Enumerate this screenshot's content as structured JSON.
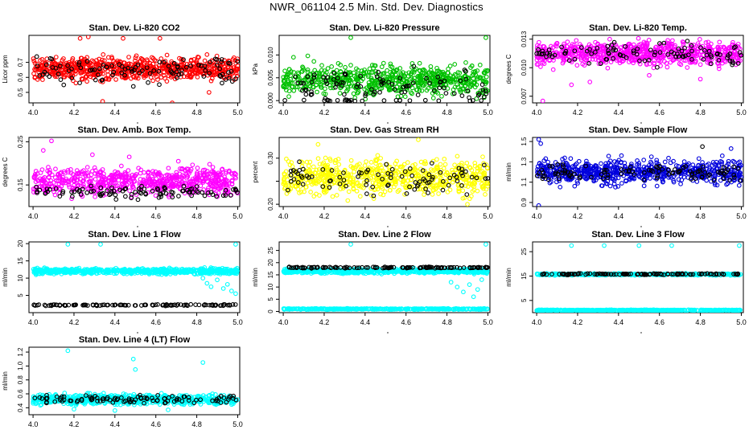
{
  "page_title": "NWR_061104  2.5 Min. Std. Dev. Diagnostics",
  "chart_data": [
    {
      "id": "co2",
      "type": "scatter",
      "title": "Stan. Dev. Li-820 CO2",
      "xlabel": "",
      "ylabel": "Licor ppm",
      "xlim": [
        3.98,
        5.01
      ],
      "ylim": [
        0.43,
        0.88
      ],
      "xticks": [
        4.0,
        4.2,
        4.4,
        4.6,
        4.8,
        5.0
      ],
      "xtick_labels": [
        "4.0",
        "4.2",
        "4.4",
        "4.6",
        "4.8",
        "5.0"
      ],
      "yticks": [
        0.5,
        0.6,
        0.7
      ],
      "ytick_labels": [
        "0.5",
        "0.6",
        "0.7"
      ],
      "colors": {
        "primary": "#ff0000",
        "secondary": "#000000"
      },
      "series": [
        {
          "color": "#ff0000",
          "bands": [
            {
              "center": 0.66,
              "spread": 0.055,
              "n": 700
            }
          ],
          "outliers": [
            [
              4.23,
              0.86
            ],
            [
              4.27,
              0.87
            ],
            [
              4.44,
              0.86
            ],
            [
              4.62,
              0.86
            ],
            [
              4.34,
              0.44
            ],
            [
              4.68,
              0.43
            ],
            [
              4.86,
              0.5
            ]
          ]
        },
        {
          "color": "#000000",
          "bands": [
            {
              "center": 0.65,
              "spread": 0.06,
              "n": 100
            }
          ],
          "outliers": [
            [
              4.15,
              0.55
            ],
            [
              4.49,
              0.54
            ]
          ]
        }
      ]
    },
    {
      "id": "pressure",
      "type": "scatter",
      "title": "Stan. Dev. Li-820 Pressure",
      "xlabel": "",
      "ylabel": "kPa",
      "xlim": [
        3.98,
        5.01
      ],
      "ylim": [
        -0.0005,
        0.0143
      ],
      "xticks": [
        4.0,
        4.2,
        4.4,
        4.6,
        4.8,
        5.0
      ],
      "xtick_labels": [
        "4.0",
        "4.2",
        "4.4",
        "4.6",
        "4.8",
        "5.0"
      ],
      "yticks": [
        0.0,
        0.005,
        0.01
      ],
      "ytick_labels": [
        "0.000",
        "0.005",
        "0.010"
      ],
      "colors": {
        "primary": "#00c000",
        "secondary": "#000000"
      },
      "series": [
        {
          "color": "#00c000",
          "bands": [
            {
              "center": 0.0045,
              "spread": 0.0022,
              "n": 650
            }
          ],
          "outliers": [
            [
              4.33,
              0.0138
            ],
            [
              4.99,
              0.0138
            ],
            [
              4.05,
              0.0095
            ],
            [
              4.12,
              0.0098
            ]
          ]
        },
        {
          "color": "#000000",
          "bands": [
            {
              "center": 0.0035,
              "spread": 0.0025,
              "n": 90
            },
            {
              "center": 0.0,
              "spread": 0.0001,
              "n": 25
            }
          ],
          "outliers": []
        }
      ]
    },
    {
      "id": "licor_temp",
      "type": "scatter",
      "title": "Stan. Dev. Li-820 Temp.",
      "xlabel": "",
      "ylabel": "degrees C",
      "xlim": [
        3.98,
        5.01
      ],
      "ylim": [
        0.0063,
        0.0134
      ],
      "xticks": [
        4.0,
        4.2,
        4.4,
        4.6,
        4.8,
        5.0
      ],
      "xtick_labels": [
        "4.0",
        "4.2",
        "4.4",
        "4.6",
        "4.8",
        "5.0"
      ],
      "yticks": [
        0.007,
        0.01,
        0.013
      ],
      "ytick_labels": [
        "0.007",
        "0.010",
        "0.013"
      ],
      "colors": {
        "primary": "#ff00ff",
        "secondary": "#000000"
      },
      "series": [
        {
          "color": "#ff00ff",
          "bands": [
            {
              "center": 0.0115,
              "spread": 0.0009,
              "n": 700
            }
          ],
          "outliers": [
            [
              4.03,
              0.0065
            ],
            [
              4.17,
              0.0082
            ],
            [
              4.26,
              0.0085
            ],
            [
              4.55,
              0.0092
            ],
            [
              4.8,
              0.0088
            ]
          ]
        },
        {
          "color": "#000000",
          "bands": [
            {
              "center": 0.0114,
              "spread": 0.0009,
              "n": 100
            }
          ],
          "outliers": []
        }
      ]
    },
    {
      "id": "box_temp",
      "type": "scatter",
      "title": "Stan. Dev. Amb. Box Temp.",
      "xlabel": "",
      "ylabel": "degrees C",
      "xlim": [
        3.98,
        5.01
      ],
      "ylim": [
        0.1,
        0.26
      ],
      "xticks": [
        4.0,
        4.2,
        4.4,
        4.6,
        4.8,
        5.0
      ],
      "xtick_labels": [
        "4.0",
        "4.2",
        "4.4",
        "4.6",
        "4.8",
        "5.0"
      ],
      "yticks": [
        0.15,
        0.25
      ],
      "ytick_labels": [
        "0.15",
        "0.25"
      ],
      "colors": {
        "primary": "#ff00ff",
        "secondary": "#000000"
      },
      "series": [
        {
          "color": "#ff00ff",
          "bands": [
            {
              "center": 0.158,
              "spread": 0.022,
              "n": 650
            }
          ],
          "outliers": [
            [
              4.09,
              0.252
            ],
            [
              4.05,
              0.23
            ],
            [
              4.29,
              0.22
            ],
            [
              4.47,
              0.215
            ],
            [
              4.71,
              0.205
            ]
          ]
        },
        {
          "color": "#000000",
          "bands": [
            {
              "center": 0.133,
              "spread": 0.01,
              "n": 100
            }
          ],
          "outliers": []
        }
      ]
    },
    {
      "id": "rh",
      "type": "scatter",
      "title": "Stan. Dev. Gas Stream RH",
      "xlabel": "",
      "ylabel": "percent",
      "xlim": [
        3.98,
        5.01
      ],
      "ylim": [
        0.195,
        0.345
      ],
      "xticks": [
        4.0,
        4.2,
        4.4,
        4.6,
        4.8,
        5.0
      ],
      "xtick_labels": [
        "4.0",
        "4.2",
        "4.4",
        "4.6",
        "4.8",
        "5.0"
      ],
      "yticks": [
        0.2,
        0.25,
        0.3
      ],
      "ytick_labels": [
        "0.20",
        "",
        "0.30"
      ],
      "colors": {
        "primary": "#ffff00",
        "secondary": "#000000"
      },
      "series": [
        {
          "color": "#ffff00",
          "bands": [
            {
              "center": 0.258,
              "spread": 0.028,
              "n": 650
            }
          ],
          "outliers": [
            [
              4.66,
              0.34
            ],
            [
              4.17,
              0.33
            ],
            [
              4.9,
              0.2
            ]
          ]
        },
        {
          "color": "#000000",
          "bands": [
            {
              "center": 0.255,
              "spread": 0.025,
              "n": 90
            }
          ],
          "outliers": []
        }
      ]
    },
    {
      "id": "sample_flow",
      "type": "scatter",
      "title": "Stan. Dev. Sample Flow",
      "xlabel": "",
      "ylabel": "ml/min",
      "xlim": [
        3.98,
        5.01
      ],
      "ylim": [
        0.86,
        1.54
      ],
      "xticks": [
        4.0,
        4.2,
        4.4,
        4.6,
        4.8,
        5.0
      ],
      "xtick_labels": [
        "4.0",
        "4.2",
        "4.4",
        "4.6",
        "4.8",
        "5.0"
      ],
      "yticks": [
        0.9,
        1.1,
        1.3,
        1.5
      ],
      "ytick_labels": [
        "0.9",
        "1.1",
        "1.3",
        "1.5"
      ],
      "colors": {
        "primary": "#0000dd",
        "secondary": "#000000"
      },
      "series": [
        {
          "color": "#0000dd",
          "bands": [
            {
              "center": 1.2,
              "spread": 0.09,
              "n": 650
            }
          ],
          "outliers": [
            [
              4.01,
              1.52
            ],
            [
              4.02,
              1.48
            ],
            [
              4.01,
              0.87
            ],
            [
              4.95,
              1.43
            ]
          ]
        },
        {
          "color": "#000000",
          "bands": [
            {
              "center": 1.2,
              "spread": 0.05,
              "n": 100
            }
          ],
          "outliers": [
            [
              4.81,
              1.45
            ]
          ]
        }
      ]
    },
    {
      "id": "line1",
      "type": "scatter",
      "title": "Stan. Dev. Line 1 Flow",
      "xlabel": "",
      "ylabel": "ml/min",
      "xlim": [
        3.98,
        5.01
      ],
      "ylim": [
        0.0,
        20.5
      ],
      "xticks": [
        4.0,
        4.2,
        4.4,
        4.6,
        4.8,
        5.0
      ],
      "xtick_labels": [
        "4.0",
        "4.2",
        "4.4",
        "4.6",
        "4.8",
        "5.0"
      ],
      "yticks": [
        5,
        10,
        15,
        20
      ],
      "ytick_labels": [
        "5",
        "10",
        "15",
        "20"
      ],
      "colors": {
        "primary": "#00ffff",
        "secondary": "#000000"
      },
      "series": [
        {
          "color": "#00ffff",
          "bands": [
            {
              "center": 12.0,
              "spread": 0.6,
              "n": 650
            }
          ],
          "outliers": [
            [
              4.17,
              19.8
            ],
            [
              4.33,
              19.8
            ],
            [
              4.99,
              19.8
            ],
            [
              4.85,
              8.5
            ],
            [
              4.87,
              7.5
            ],
            [
              4.9,
              9.5
            ],
            [
              4.93,
              7.0
            ],
            [
              4.95,
              8.2
            ],
            [
              4.97,
              6.3
            ],
            [
              4.83,
              10.0
            ],
            [
              4.99,
              5.5
            ]
          ]
        },
        {
          "color": "#000000",
          "bands": [
            {
              "center": 2.2,
              "spread": 0.15,
              "n": 110
            }
          ],
          "outliers": []
        }
      ]
    },
    {
      "id": "line2",
      "type": "scatter",
      "title": "Stan. Dev. Line 2 Flow",
      "xlabel": "",
      "ylabel": "ml/min",
      "xlim": [
        3.98,
        5.01
      ],
      "ylim": [
        -0.5,
        28.5
      ],
      "xticks": [
        4.0,
        4.2,
        4.4,
        4.6,
        4.8,
        5.0
      ],
      "xtick_labels": [
        "4.0",
        "4.2",
        "4.4",
        "4.6",
        "4.8",
        "5.0"
      ],
      "yticks": [
        0,
        5,
        10,
        15,
        20,
        25
      ],
      "ytick_labels": [
        "0",
        "5",
        "10",
        "15",
        "20",
        "25"
      ],
      "colors": {
        "primary": "#00ffff",
        "secondary": "#000000"
      },
      "series": [
        {
          "color": "#00ffff",
          "bands": [
            {
              "center": 16.5,
              "spread": 0.7,
              "n": 600
            },
            {
              "center": 1.0,
              "spread": 0.15,
              "n": 400
            }
          ],
          "outliers": [
            [
              4.33,
              27.5
            ],
            [
              4.99,
              27.5
            ],
            [
              4.82,
              12.0
            ],
            [
              4.85,
              10.0
            ],
            [
              4.88,
              8.0
            ],
            [
              4.91,
              11.0
            ],
            [
              4.93,
              6.0
            ],
            [
              4.95,
              9.0
            ],
            [
              4.97,
              13.0
            ]
          ]
        },
        {
          "color": "#000000",
          "bands": [
            {
              "center": 18.0,
              "spread": 0.2,
              "n": 120
            }
          ],
          "outliers": []
        }
      ]
    },
    {
      "id": "line3",
      "type": "scatter",
      "title": "Stan. Dev. Line 3 Flow",
      "xlabel": "",
      "ylabel": "ml/min",
      "xlim": [
        3.98,
        5.01
      ],
      "ylim": [
        0.0,
        29.0
      ],
      "xticks": [
        4.0,
        4.2,
        4.4,
        4.6,
        4.8,
        5.0
      ],
      "xtick_labels": [
        "4.0",
        "4.2",
        "4.4",
        "4.6",
        "4.8",
        "5.0"
      ],
      "yticks": [
        5,
        15,
        25
      ],
      "ytick_labels": [
        "5",
        "15",
        "25"
      ],
      "colors": {
        "primary": "#00ffff",
        "secondary": "#000000"
      },
      "series": [
        {
          "color": "#00ffff",
          "bands": [
            {
              "center": 15.7,
              "spread": 0.25,
              "n": 450
            },
            {
              "center": 1.0,
              "spread": 0.12,
              "n": 500
            }
          ],
          "outliers": [
            [
              4.17,
              27.5
            ],
            [
              4.33,
              27.5
            ],
            [
              4.5,
              27.5
            ],
            [
              4.66,
              27.5
            ],
            [
              4.99,
              27.5
            ]
          ]
        },
        {
          "color": "#000000",
          "bands": [
            {
              "center": 15.8,
              "spread": 0.2,
              "n": 110
            }
          ],
          "outliers": []
        }
      ]
    },
    {
      "id": "line4",
      "type": "scatter",
      "title": "Stan. Dev. Line 4 (LT) Flow",
      "xlabel": "",
      "ylabel": "ml/min",
      "xlim": [
        3.98,
        5.01
      ],
      "ylim": [
        0.3,
        1.27
      ],
      "xticks": [
        4.0,
        4.2,
        4.4,
        4.6,
        4.8,
        5.0
      ],
      "xtick_labels": [
        "4.0",
        "4.2",
        "4.4",
        "4.6",
        "4.8",
        "5.0"
      ],
      "yticks": [
        0.4,
        0.6,
        0.8,
        1.0,
        1.2
      ],
      "ytick_labels": [
        "0.4",
        "0.6",
        "0.8",
        "1.0",
        "1.2"
      ],
      "colors": {
        "primary": "#00ffff",
        "secondary": "#000000"
      },
      "series": [
        {
          "color": "#00ffff",
          "bands": [
            {
              "center": 0.52,
              "spread": 0.05,
              "n": 700
            }
          ],
          "outliers": [
            [
              4.17,
              1.22
            ],
            [
              4.49,
              1.1
            ],
            [
              4.83,
              1.05
            ],
            [
              4.5,
              0.95
            ],
            [
              4.66,
              0.37
            ],
            [
              4.4,
              0.36
            ],
            [
              4.2,
              0.38
            ]
          ]
        },
        {
          "color": "#000000",
          "bands": [
            {
              "center": 0.52,
              "spread": 0.045,
              "n": 100
            }
          ],
          "outliers": []
        }
      ]
    }
  ]
}
